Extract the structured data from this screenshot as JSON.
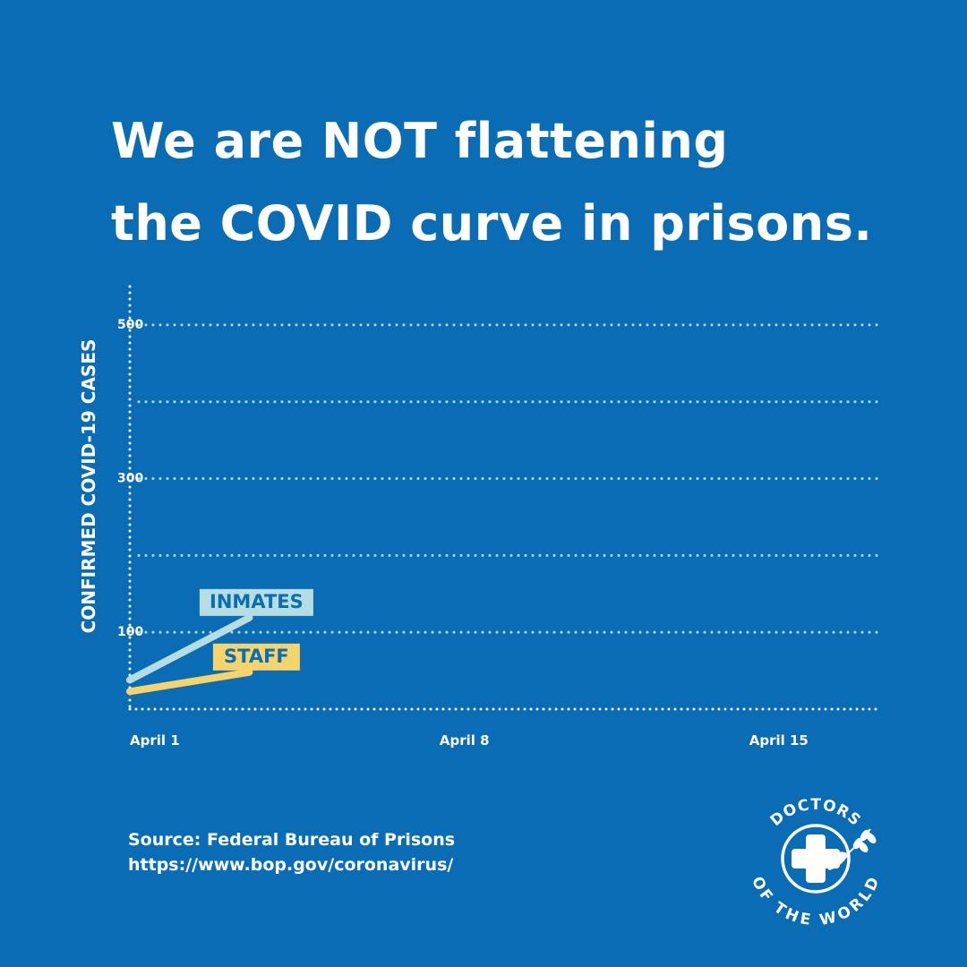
{
  "title": {
    "line1": "We are NOT flattening",
    "line2": "the COVID curve in prisons."
  },
  "chart_data": {
    "type": "line",
    "title": "We are NOT flattening the COVID curve in prisons.",
    "xlabel": "",
    "ylabel": "CONFIRMED COVID-19 CASES",
    "x_ticks": [
      {
        "day": 1,
        "label": "April 1"
      },
      {
        "day": 8,
        "label": "April 8"
      },
      {
        "day": 15,
        "label": "April 15"
      }
    ],
    "y_ticks": [
      {
        "value": 100,
        "label": "100"
      },
      {
        "value": 300,
        "label": "300"
      },
      {
        "value": 500,
        "label": "500"
      }
    ],
    "gridlines": [
      100,
      200,
      300,
      400,
      500
    ],
    "xlim": [
      1,
      18
    ],
    "ylim": [
      0,
      550
    ],
    "grid": true,
    "series": [
      {
        "name": "INMATES",
        "color": "#b6dde1",
        "x": [
          1,
          3.7
        ],
        "values": [
          38,
          119
        ]
      },
      {
        "name": "STAFF",
        "color": "#f5d46c",
        "x": [
          1,
          3.7
        ],
        "values": [
          23,
          48
        ]
      }
    ]
  },
  "source": {
    "line1": "Source: Federal Bureau of Prisons",
    "line2": "https://www.bop.gov/coronavirus/"
  },
  "logo": {
    "text_top": "DOCTORS",
    "text_bottom": "OF THE WORLD",
    "colors": {
      "ring": "#ffffff",
      "mark": "#0a6cb5"
    }
  },
  "colors": {
    "background": "#0a6cb5",
    "text": "#ffffff",
    "grid": "#b6dde1",
    "label_text": "#0a6cb5"
  }
}
